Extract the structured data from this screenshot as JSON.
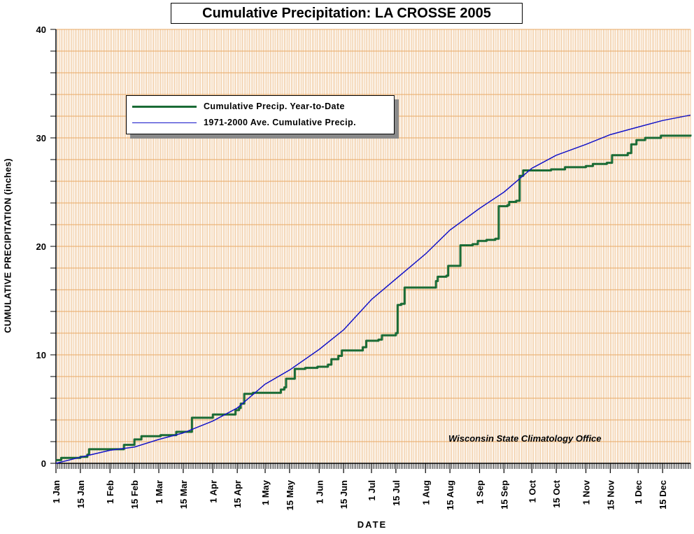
{
  "chart_data": {
    "type": "line",
    "title": "Cumulative Precipitation: LA CROSSE 2005",
    "xlabel": "DATE",
    "ylabel": "CUMULATIVE PRECIPITATION (inches)",
    "ylim": [
      0,
      40
    ],
    "yticks": [
      0,
      10,
      20,
      30,
      40
    ],
    "xlim": [
      "2005-01-01",
      "2005-12-31"
    ],
    "xticks": [
      {
        "label": "1 Jan",
        "date": "2005-01-01"
      },
      {
        "label": "15 Jan",
        "date": "2005-01-15"
      },
      {
        "label": "1 Feb",
        "date": "2005-02-01"
      },
      {
        "label": "15 Feb",
        "date": "2005-02-15"
      },
      {
        "label": "1 Mar",
        "date": "2005-03-01"
      },
      {
        "label": "15 Mar",
        "date": "2005-03-15"
      },
      {
        "label": "1 Apr",
        "date": "2005-04-01"
      },
      {
        "label": "15 Apr",
        "date": "2005-04-15"
      },
      {
        "label": "1 May",
        "date": "2005-05-01"
      },
      {
        "label": "15 May",
        "date": "2005-05-15"
      },
      {
        "label": "1 Jun",
        "date": "2005-06-01"
      },
      {
        "label": "15 Jun",
        "date": "2005-06-15"
      },
      {
        "label": "1 Jul",
        "date": "2005-07-01"
      },
      {
        "label": "15 Jul",
        "date": "2005-07-15"
      },
      {
        "label": "1 Aug",
        "date": "2005-08-01"
      },
      {
        "label": "15 Aug",
        "date": "2005-08-15"
      },
      {
        "label": "1 Sep",
        "date": "2005-09-01"
      },
      {
        "label": "15 Sep",
        "date": "2005-09-15"
      },
      {
        "label": "1 Oct",
        "date": "2005-10-01"
      },
      {
        "label": "15 Oct",
        "date": "2005-10-15"
      },
      {
        "label": "1 Nov",
        "date": "2005-11-01"
      },
      {
        "label": "15 Nov",
        "date": "2005-11-15"
      },
      {
        "label": "1 Dec",
        "date": "2005-12-01"
      },
      {
        "label": "15 Dec",
        "date": "2005-12-15"
      }
    ],
    "grid": true,
    "legend_position": "top-left",
    "series": [
      {
        "name": "Cumulative Precip. Year-to-Date",
        "color": "#1a6b35",
        "step": true,
        "points": [
          [
            "2005-01-01",
            0.3
          ],
          [
            "2005-01-04",
            0.5
          ],
          [
            "2005-01-15",
            0.6
          ],
          [
            "2005-01-19",
            0.8
          ],
          [
            "2005-01-20",
            1.3
          ],
          [
            "2005-02-08",
            1.3
          ],
          [
            "2005-02-09",
            1.7
          ],
          [
            "2005-02-14",
            1.7
          ],
          [
            "2005-02-15",
            2.2
          ],
          [
            "2005-02-19",
            2.5
          ],
          [
            "2005-03-01",
            2.5
          ],
          [
            "2005-03-02",
            2.6
          ],
          [
            "2005-03-10",
            2.6
          ],
          [
            "2005-03-11",
            2.9
          ],
          [
            "2005-03-19",
            2.9
          ],
          [
            "2005-03-20",
            4.2
          ],
          [
            "2005-03-31",
            4.2
          ],
          [
            "2005-04-01",
            4.5
          ],
          [
            "2005-04-13",
            4.5
          ],
          [
            "2005-04-14",
            4.9
          ],
          [
            "2005-04-16",
            5.1
          ],
          [
            "2005-04-17",
            5.5
          ],
          [
            "2005-04-19",
            6.4
          ],
          [
            "2005-04-24",
            6.5
          ],
          [
            "2005-05-08",
            6.5
          ],
          [
            "2005-05-10",
            6.8
          ],
          [
            "2005-05-12",
            7.0
          ],
          [
            "2005-05-13",
            7.8
          ],
          [
            "2005-05-17",
            7.8
          ],
          [
            "2005-05-18",
            8.7
          ],
          [
            "2005-05-24",
            8.8
          ],
          [
            "2005-05-31",
            8.9
          ],
          [
            "2005-06-03",
            8.9
          ],
          [
            "2005-06-06",
            9.1
          ],
          [
            "2005-06-08",
            9.6
          ],
          [
            "2005-06-12",
            9.9
          ],
          [
            "2005-06-14",
            10.4
          ],
          [
            "2005-06-24",
            10.4
          ],
          [
            "2005-06-26",
            10.7
          ],
          [
            "2005-06-28",
            11.3
          ],
          [
            "2005-07-05",
            11.4
          ],
          [
            "2005-07-07",
            11.8
          ],
          [
            "2005-07-13",
            11.8
          ],
          [
            "2005-07-15",
            12.0
          ],
          [
            "2005-07-16",
            14.6
          ],
          [
            "2005-07-18",
            14.7
          ],
          [
            "2005-07-20",
            16.2
          ],
          [
            "2005-08-05",
            16.2
          ],
          [
            "2005-08-07",
            16.8
          ],
          [
            "2005-08-08",
            17.2
          ],
          [
            "2005-08-13",
            17.3
          ],
          [
            "2005-08-14",
            18.2
          ],
          [
            "2005-08-20",
            18.2
          ],
          [
            "2005-08-21",
            20.1
          ],
          [
            "2005-08-28",
            20.2
          ],
          [
            "2005-08-31",
            20.5
          ],
          [
            "2005-09-05",
            20.6
          ],
          [
            "2005-09-10",
            20.7
          ],
          [
            "2005-09-12",
            23.7
          ],
          [
            "2005-09-17",
            23.8
          ],
          [
            "2005-09-18",
            24.1
          ],
          [
            "2005-09-22",
            24.2
          ],
          [
            "2005-09-24",
            26.5
          ],
          [
            "2005-09-26",
            27.0
          ],
          [
            "2005-10-12",
            27.1
          ],
          [
            "2005-10-20",
            27.3
          ],
          [
            "2005-11-01",
            27.4
          ],
          [
            "2005-11-05",
            27.6
          ],
          [
            "2005-11-13",
            27.7
          ],
          [
            "2005-11-16",
            28.4
          ],
          [
            "2005-11-25",
            28.6
          ],
          [
            "2005-11-27",
            29.4
          ],
          [
            "2005-11-30",
            29.8
          ],
          [
            "2005-12-05",
            30.0
          ],
          [
            "2005-12-14",
            30.2
          ],
          [
            "2005-12-31",
            30.3
          ]
        ]
      },
      {
        "name": "1971-2000 Ave. Cumulative Precip.",
        "color": "#1414c8",
        "step": false,
        "points": [
          [
            "2005-01-01",
            0.0
          ],
          [
            "2005-01-16",
            0.6
          ],
          [
            "2005-02-01",
            1.2
          ],
          [
            "2005-02-15",
            1.5
          ],
          [
            "2005-03-01",
            2.2
          ],
          [
            "2005-03-15",
            2.8
          ],
          [
            "2005-04-01",
            3.9
          ],
          [
            "2005-04-15",
            5.1
          ],
          [
            "2005-05-01",
            7.3
          ],
          [
            "2005-05-15",
            8.6
          ],
          [
            "2005-06-01",
            10.5
          ],
          [
            "2005-06-15",
            12.3
          ],
          [
            "2005-07-01",
            15.1
          ],
          [
            "2005-07-15",
            17.0
          ],
          [
            "2005-08-01",
            19.3
          ],
          [
            "2005-08-15",
            21.5
          ],
          [
            "2005-09-01",
            23.5
          ],
          [
            "2005-09-15",
            25.0
          ],
          [
            "2005-10-01",
            27.2
          ],
          [
            "2005-10-15",
            28.4
          ],
          [
            "2005-11-01",
            29.4
          ],
          [
            "2005-11-15",
            30.3
          ],
          [
            "2005-12-01",
            31.0
          ],
          [
            "2005-12-15",
            31.6
          ],
          [
            "2005-12-31",
            32.1
          ]
        ]
      }
    ],
    "annotations": [
      "Wisconsin State Climatology Office"
    ],
    "colors": {
      "background": "#ffffff",
      "grid": "#e8a964",
      "axis": "#000000"
    }
  }
}
